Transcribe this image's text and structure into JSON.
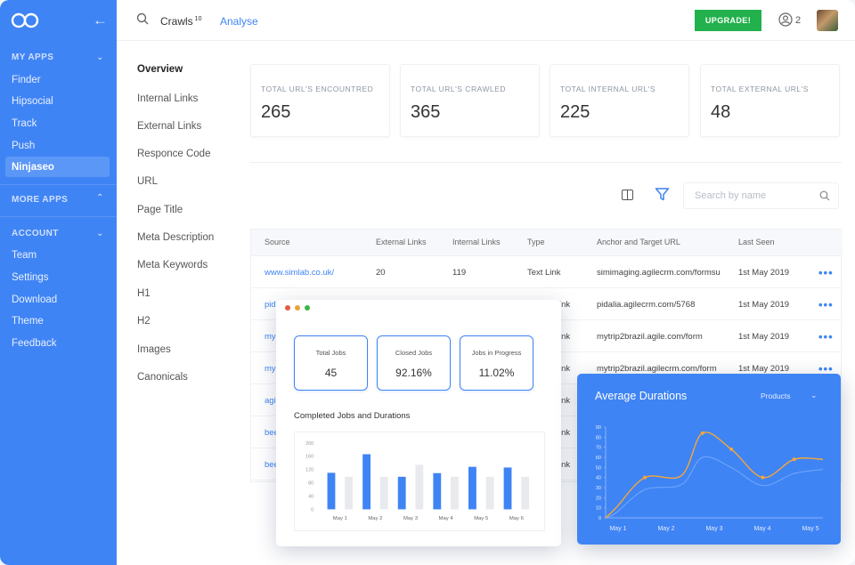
{
  "sidebar": {
    "sections": [
      {
        "label": "MY APPS",
        "items": [
          "Finder",
          "Hipsocial",
          "Track",
          "Push",
          "Ninjaseo"
        ]
      },
      {
        "label": "MORE APPS",
        "items": []
      },
      {
        "label": "ACCOUNT",
        "items": [
          "Team",
          "Settings",
          "Download",
          "Theme",
          "Feedback"
        ]
      }
    ],
    "active_item": "Ninjaseo"
  },
  "topbar": {
    "tab_crawls": "Crawls",
    "crawls_count": "10",
    "tab_analyse": "Analyse",
    "upgrade_label": "UPGRADE!",
    "users_count": "2"
  },
  "subnav": [
    "Overview",
    "Internal Links",
    "External Links",
    "Responce Code",
    "URL",
    "Page Title",
    "Meta Description",
    "Meta Keywords",
    "H1",
    "H2",
    "Images",
    "Canonicals"
  ],
  "stats": [
    {
      "label": "TOTAL URL'S ENCOUNTRED",
      "value": "265"
    },
    {
      "label": "TOTAL URL'S CRAWLED",
      "value": "365"
    },
    {
      "label": "TOTAL INTERNAL URL'S",
      "value": "225"
    },
    {
      "label": "TOTAL EXTERNAL URL'S",
      "value": "48"
    }
  ],
  "search": {
    "placeholder": "Search by name"
  },
  "table": {
    "columns": [
      "Source",
      "External Links",
      "Internal Links",
      "Type",
      "Anchor and Target URL",
      "Last Seen"
    ],
    "rows": [
      {
        "source": "www.simlab.co.uk/",
        "external": "20",
        "internal": "119",
        "type": "Text Link",
        "anchor": "simimaging.agilecrm.com/formsu",
        "last_seen": "1st May 2019"
      },
      {
        "source": "pid",
        "external": "",
        "internal": "",
        "type": "ink",
        "anchor": "pidalia.agilecrm.com/5768",
        "last_seen": "1st May 2019"
      },
      {
        "source": "my",
        "external": "",
        "internal": "",
        "type": "ink",
        "anchor": "mytrip2brazil.agile.com/form",
        "last_seen": "1st May 2019"
      },
      {
        "source": "my",
        "external": "",
        "internal": "",
        "type": "ink",
        "anchor": "mytrip2brazil.agilecrm.com/form",
        "last_seen": "1st May 2019"
      },
      {
        "source": "agi",
        "external": "",
        "internal": "",
        "type": "ink",
        "anchor": "",
        "last_seen": ""
      },
      {
        "source": "bee",
        "external": "",
        "internal": "",
        "type": "ink",
        "anchor": "",
        "last_seen": ""
      },
      {
        "source": "bee",
        "external": "",
        "internal": "",
        "type": "ink",
        "anchor": "",
        "last_seen": ""
      }
    ]
  },
  "jobs": {
    "cards": [
      {
        "label": "Total Jobs",
        "value": "45"
      },
      {
        "label": "Closed Jobs",
        "value": "92.16%"
      },
      {
        "label": "Jobs in Progress",
        "value": "11.02%"
      }
    ],
    "title": "Completed Jobs and Durations"
  },
  "durations": {
    "title": "Average Durations",
    "select": "Products"
  },
  "chart_data": [
    {
      "type": "bar",
      "title": "Completed Jobs and Durations",
      "categories": [
        "May 1",
        "May 2",
        "May 3",
        "May 4",
        "May 5",
        "May 6"
      ],
      "ylim": [
        0,
        200
      ],
      "yticks": [
        "0",
        "40",
        "80",
        "120",
        "160",
        "200"
      ],
      "series": [
        {
          "color": "#3f84f4",
          "values": [
            110,
            166,
            98,
            109,
            128,
            126
          ]
        },
        {
          "color": "#e8eaee",
          "values": [
            98,
            98,
            134,
            98,
            98,
            98
          ]
        }
      ]
    },
    {
      "type": "line",
      "title": "Average Durations",
      "x": [
        "May 1",
        "May 2",
        "May 3",
        "May 4",
        "May 5"
      ],
      "ylim": [
        0,
        90
      ],
      "yticks": [
        "0",
        "10",
        "20",
        "30",
        "40",
        "50",
        "60",
        "70",
        "80",
        "90"
      ],
      "series": [
        {
          "color": "#f5a63a",
          "x": [
            1,
            1.2,
            1.75,
            2.45,
            2.85,
            3.4,
            4,
            4.6,
            5.15
          ],
          "values": [
            0,
            10,
            40,
            42,
            84,
            68,
            40,
            58,
            58
          ]
        },
        {
          "color": "#7fb2ff",
          "x": [
            1,
            1.2,
            1.75,
            2.45,
            2.85,
            3.4,
            4,
            4.6,
            5.15
          ],
          "values": [
            0,
            5,
            28,
            33,
            60,
            50,
            32,
            44,
            48
          ]
        }
      ]
    }
  ]
}
